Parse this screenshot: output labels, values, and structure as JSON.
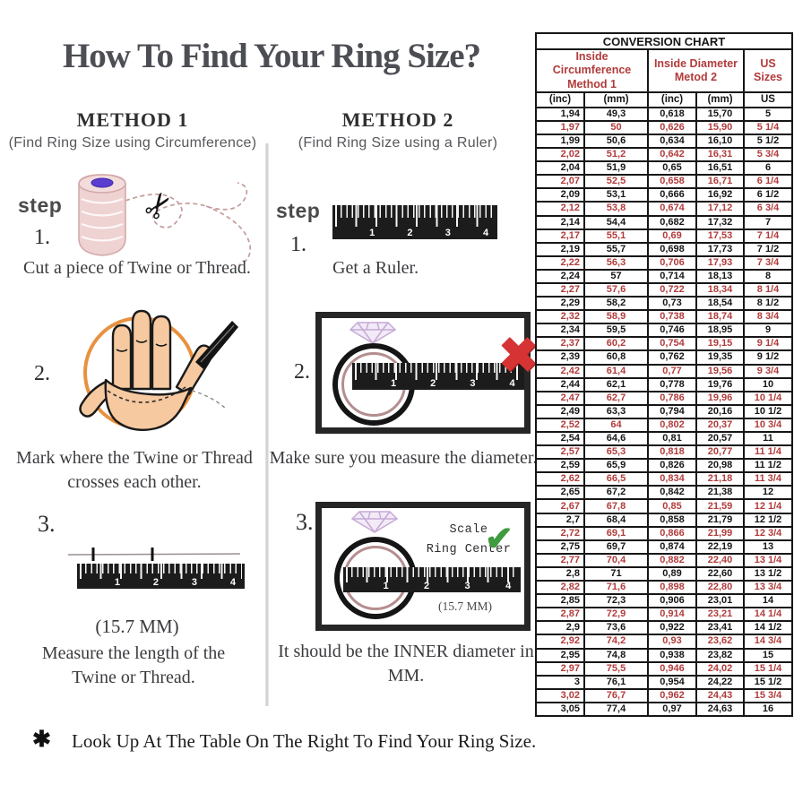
{
  "title": "How To Find Your Ring Size?",
  "methods": {
    "m1": {
      "heading": "METHOD 1",
      "subheading": "(Find Ring Size using Circumference)",
      "step_label": "step",
      "step1_num": "1.",
      "step1_text": "Cut a piece of Twine or Thread.",
      "step2_num": "2.",
      "step2_text": "Mark where the Twine or Thread crosses each other.",
      "step3_num": "3.",
      "step3_measure": "(15.7 MM)",
      "step3_text": "Measure the length of the Twine or Thread."
    },
    "m2": {
      "heading": "METHOD 2",
      "subheading": "(Find Ring Size using a Ruler)",
      "step_label": "step",
      "step1_num": "1.",
      "step1_text": "Get a Ruler.",
      "step2_num": "2.",
      "step2_text": "Make sure you measure the diameter.",
      "step3_num": "3.",
      "scale_line1": "Scale",
      "scale_line2": "Ring Center",
      "step3_measure": "(15.7 MM)",
      "step3_text": "It should be the INNER diameter in MM."
    }
  },
  "ruler_numbers": [
    "1",
    "2",
    "3",
    "4"
  ],
  "marks": {
    "x": "✖",
    "check": "✔",
    "scissors": "✂",
    "asterisk": "✱"
  },
  "footer": "Look Up At The Table On The Right To Find Your Ring Size.",
  "colors": {
    "accent_red": "#b23b3b",
    "x_red": "#d63434",
    "check_green": "#3f9b3d",
    "ring_rose": "#b48e8e",
    "hand_orange": "#e8913f",
    "diamond_purple": "#c5a9d6",
    "title_gray": "#4c4e54"
  },
  "chart_data": {
    "type": "table",
    "title": "CONVERSION CHART",
    "group_headers": [
      {
        "label": "Inside Circumference Method 1",
        "span": 2
      },
      {
        "label": "Inside Diameter Metod 2",
        "span": 2
      },
      {
        "label": "US Sizes",
        "span": 1
      }
    ],
    "columns": [
      "(inc)",
      "(mm)",
      "(inc)",
      "(mm)",
      "US"
    ],
    "rows": [
      [
        "1,94",
        "49,3",
        "0,618",
        "15,70",
        "5"
      ],
      [
        "1,97",
        "50",
        "0,626",
        "15,90",
        "5 1/4"
      ],
      [
        "1,99",
        "50,6",
        "0,634",
        "16,10",
        "5 1/2"
      ],
      [
        "2,02",
        "51,2",
        "0,642",
        "16,31",
        "5 3/4"
      ],
      [
        "2,04",
        "51,9",
        "0,65",
        "16,51",
        "6"
      ],
      [
        "2,07",
        "52,5",
        "0,658",
        "16,71",
        "6 1/4"
      ],
      [
        "2,09",
        "53,1",
        "0,666",
        "16,92",
        "6 1/2"
      ],
      [
        "2,12",
        "53,8",
        "0,674",
        "17,12",
        "6 3/4"
      ],
      [
        "2,14",
        "54,4",
        "0,682",
        "17,32",
        "7"
      ],
      [
        "2,17",
        "55,1",
        "0,69",
        "17,53",
        "7 1/4"
      ],
      [
        "2,19",
        "55,7",
        "0,698",
        "17,73",
        "7 1/2"
      ],
      [
        "2,22",
        "56,3",
        "0,706",
        "17,93",
        "7 3/4"
      ],
      [
        "2,24",
        "57",
        "0,714",
        "18,13",
        "8"
      ],
      [
        "2,27",
        "57,6",
        "0,722",
        "18,34",
        "8 1/4"
      ],
      [
        "2,29",
        "58,2",
        "0,73",
        "18,54",
        "8 1/2"
      ],
      [
        "2,32",
        "58,9",
        "0,738",
        "18,74",
        "8 3/4"
      ],
      [
        "2,34",
        "59,5",
        "0,746",
        "18,95",
        "9"
      ],
      [
        "2,37",
        "60,2",
        "0,754",
        "19,15",
        "9 1/4"
      ],
      [
        "2,39",
        "60,8",
        "0,762",
        "19,35",
        "9 1/2"
      ],
      [
        "2,42",
        "61,4",
        "0,77",
        "19,56",
        "9 3/4"
      ],
      [
        "2,44",
        "62,1",
        "0,778",
        "19,76",
        "10"
      ],
      [
        "2,47",
        "62,7",
        "0,786",
        "19,96",
        "10 1/4"
      ],
      [
        "2,49",
        "63,3",
        "0,794",
        "20,16",
        "10 1/2"
      ],
      [
        "2,52",
        "64",
        "0,802",
        "20,37",
        "10 3/4"
      ],
      [
        "2,54",
        "64,6",
        "0,81",
        "20,57",
        "11"
      ],
      [
        "2,57",
        "65,3",
        "0,818",
        "20,77",
        "11 1/4"
      ],
      [
        "2,59",
        "65,9",
        "0,826",
        "20,98",
        "11 1/2"
      ],
      [
        "2,62",
        "66,5",
        "0,834",
        "21,18",
        "11 3/4"
      ],
      [
        "2,65",
        "67,2",
        "0,842",
        "21,38",
        "12"
      ],
      [
        "2,67",
        "67,8",
        "0,85",
        "21,59",
        "12 1/4"
      ],
      [
        "2,7",
        "68,4",
        "0,858",
        "21,79",
        "12 1/2"
      ],
      [
        "2,72",
        "69,1",
        "0,866",
        "21,99",
        "12 3/4"
      ],
      [
        "2,75",
        "69,7",
        "0,874",
        "22,19",
        "13"
      ],
      [
        "2,77",
        "70,4",
        "0,882",
        "22,40",
        "13 1/4"
      ],
      [
        "2,8",
        "71",
        "0,89",
        "22,60",
        "13 1/2"
      ],
      [
        "2,82",
        "71,6",
        "0,898",
        "22,80",
        "13 3/4"
      ],
      [
        "2,85",
        "72,3",
        "0,906",
        "23,01",
        "14"
      ],
      [
        "2,87",
        "72,9",
        "0,914",
        "23,21",
        "14 1/4"
      ],
      [
        "2,9",
        "73,6",
        "0,922",
        "23,41",
        "14 1/2"
      ],
      [
        "2,92",
        "74,2",
        "0,93",
        "23,62",
        "14 3/4"
      ],
      [
        "2,95",
        "74,8",
        "0,938",
        "23,82",
        "15"
      ],
      [
        "2,97",
        "75,5",
        "0,946",
        "24,02",
        "15 1/4"
      ],
      [
        "3",
        "76,1",
        "0,954",
        "24,22",
        "15 1/2"
      ],
      [
        "3,02",
        "76,7",
        "0,962",
        "24,43",
        "15 3/4"
      ],
      [
        "3,05",
        "77,4",
        "0,97",
        "24,63",
        "16"
      ]
    ]
  }
}
